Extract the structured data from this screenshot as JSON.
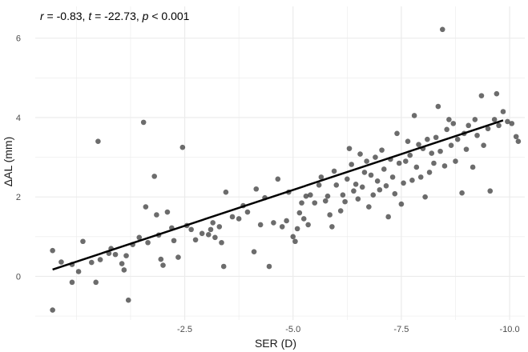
{
  "chart_data": {
    "type": "scatter",
    "annotation": {
      "r_symbol": "r",
      "r_value": " = -0.83, ",
      "t_symbol": "t",
      "t_value": " = -22.73, ",
      "p_symbol": "p",
      "p_value": " < 0.001"
    },
    "xlabel": "SER (D)",
    "ylabel": "ΔAL (mm)",
    "x_reversed": true,
    "xlim": [
      0.95,
      -10.35
    ],
    "ylim": [
      -1.1,
      6.8
    ],
    "x_ticks": [
      {
        "value": -2.5,
        "label": "-2.5"
      },
      {
        "value": -5.0,
        "label": "-5.0"
      },
      {
        "value": -7.5,
        "label": "-7.5"
      },
      {
        "value": -10.0,
        "label": "-10.0"
      }
    ],
    "y_ticks": [
      {
        "value": 0,
        "label": "0"
      },
      {
        "value": 2,
        "label": "2"
      },
      {
        "value": 4,
        "label": "4"
      },
      {
        "value": 6,
        "label": "6"
      }
    ],
    "grid": true,
    "regression": {
      "x": [
        0.55,
        -9.85
      ],
      "y": [
        0.17,
        3.93
      ]
    },
    "colors": {
      "point": "#333333",
      "line": "#000000",
      "grid": "#ebebeb"
    },
    "points": [
      [
        0.55,
        0.65
      ],
      [
        0.55,
        -0.85
      ],
      [
        0.35,
        0.36
      ],
      [
        0.1,
        -0.15
      ],
      [
        0.1,
        0.3
      ],
      [
        -0.05,
        0.12
      ],
      [
        -0.15,
        0.88
      ],
      [
        -0.35,
        0.35
      ],
      [
        -0.45,
        -0.15
      ],
      [
        -0.55,
        0.42
      ],
      [
        -0.5,
        3.4
      ],
      [
        -0.75,
        0.58
      ],
      [
        -0.8,
        0.7
      ],
      [
        -0.9,
        0.55
      ],
      [
        -1.05,
        0.32
      ],
      [
        -1.1,
        0.16
      ],
      [
        -1.15,
        0.52
      ],
      [
        -1.2,
        -0.6
      ],
      [
        -1.3,
        0.8
      ],
      [
        -1.45,
        0.98
      ],
      [
        -1.55,
        3.88
      ],
      [
        -1.6,
        1.75
      ],
      [
        -1.65,
        0.85
      ],
      [
        -1.8,
        2.52
      ],
      [
        -1.85,
        1.55
      ],
      [
        -1.9,
        1.04
      ],
      [
        -1.95,
        0.43
      ],
      [
        -2.0,
        0.28
      ],
      [
        -2.1,
        1.62
      ],
      [
        -2.2,
        1.22
      ],
      [
        -2.25,
        0.9
      ],
      [
        -2.35,
        0.48
      ],
      [
        -2.45,
        3.25
      ],
      [
        -2.55,
        1.28
      ],
      [
        -2.65,
        1.18
      ],
      [
        -2.75,
        0.92
      ],
      [
        -2.9,
        1.08
      ],
      [
        -3.05,
        1.05
      ],
      [
        -3.1,
        1.18
      ],
      [
        -3.15,
        1.35
      ],
      [
        -3.2,
        0.98
      ],
      [
        -3.3,
        1.25
      ],
      [
        -3.35,
        0.85
      ],
      [
        -3.4,
        0.25
      ],
      [
        -3.45,
        2.12
      ],
      [
        -3.6,
        1.5
      ],
      [
        -3.75,
        1.45
      ],
      [
        -3.85,
        1.78
      ],
      [
        -3.95,
        1.62
      ],
      [
        -4.1,
        0.62
      ],
      [
        -4.15,
        2.2
      ],
      [
        -4.25,
        1.3
      ],
      [
        -4.35,
        1.98
      ],
      [
        -4.45,
        0.25
      ],
      [
        -4.55,
        1.35
      ],
      [
        -4.65,
        2.45
      ],
      [
        -4.75,
        1.25
      ],
      [
        -4.85,
        1.4
      ],
      [
        -4.9,
        2.12
      ],
      [
        -5.0,
        1.0
      ],
      [
        -5.05,
        0.88
      ],
      [
        -5.1,
        1.2
      ],
      [
        -5.15,
        1.6
      ],
      [
        -5.2,
        1.85
      ],
      [
        -5.25,
        1.45
      ],
      [
        -5.3,
        2.02
      ],
      [
        -5.35,
        1.3
      ],
      [
        -5.4,
        2.05
      ],
      [
        -5.5,
        1.85
      ],
      [
        -5.6,
        2.3
      ],
      [
        -5.65,
        2.5
      ],
      [
        -5.75,
        1.9
      ],
      [
        -5.8,
        2.02
      ],
      [
        -5.85,
        1.55
      ],
      [
        -5.9,
        1.25
      ],
      [
        -5.95,
        2.65
      ],
      [
        -6.0,
        2.3
      ],
      [
        -6.1,
        1.65
      ],
      [
        -6.15,
        2.05
      ],
      [
        -6.2,
        1.88
      ],
      [
        -6.25,
        2.45
      ],
      [
        -6.3,
        3.22
      ],
      [
        -6.35,
        2.82
      ],
      [
        -6.4,
        2.15
      ],
      [
        -6.45,
        2.32
      ],
      [
        -6.5,
        1.95
      ],
      [
        -6.55,
        3.08
      ],
      [
        -6.6,
        2.25
      ],
      [
        -6.65,
        2.62
      ],
      [
        -6.7,
        2.9
      ],
      [
        -6.75,
        1.75
      ],
      [
        -6.8,
        2.55
      ],
      [
        -6.85,
        2.05
      ],
      [
        -6.9,
        3.0
      ],
      [
        -6.95,
        2.4
      ],
      [
        -7.0,
        2.18
      ],
      [
        -7.05,
        3.18
      ],
      [
        -7.1,
        2.7
      ],
      [
        -7.15,
        2.28
      ],
      [
        -7.2,
        1.5
      ],
      [
        -7.25,
        2.95
      ],
      [
        -7.3,
        2.5
      ],
      [
        -7.35,
        2.08
      ],
      [
        -7.4,
        3.6
      ],
      [
        -7.45,
        2.85
      ],
      [
        -7.5,
        1.82
      ],
      [
        -7.55,
        2.35
      ],
      [
        -7.6,
        2.9
      ],
      [
        -7.65,
        3.4
      ],
      [
        -7.7,
        3.05
      ],
      [
        -7.75,
        2.42
      ],
      [
        -7.8,
        4.05
      ],
      [
        -7.85,
        2.75
      ],
      [
        -7.9,
        3.32
      ],
      [
        -7.95,
        2.5
      ],
      [
        -8.0,
        3.22
      ],
      [
        -8.05,
        2.0
      ],
      [
        -8.1,
        3.45
      ],
      [
        -8.15,
        2.62
      ],
      [
        -8.2,
        3.1
      ],
      [
        -8.25,
        2.85
      ],
      [
        -8.3,
        3.5
      ],
      [
        -8.35,
        4.28
      ],
      [
        -8.4,
        3.15
      ],
      [
        -8.45,
        6.22
      ],
      [
        -8.5,
        2.78
      ],
      [
        -8.55,
        3.7
      ],
      [
        -8.6,
        3.95
      ],
      [
        -8.65,
        3.3
      ],
      [
        -8.7,
        3.85
      ],
      [
        -8.75,
        2.9
      ],
      [
        -8.8,
        3.45
      ],
      [
        -8.9,
        2.1
      ],
      [
        -8.95,
        3.6
      ],
      [
        -9.0,
        3.2
      ],
      [
        -9.05,
        3.8
      ],
      [
        -9.15,
        2.75
      ],
      [
        -9.2,
        3.95
      ],
      [
        -9.25,
        3.55
      ],
      [
        -9.35,
        4.55
      ],
      [
        -9.4,
        3.3
      ],
      [
        -9.5,
        3.72
      ],
      [
        -9.55,
        2.15
      ],
      [
        -9.65,
        3.95
      ],
      [
        -9.7,
        4.6
      ],
      [
        -9.75,
        3.8
      ],
      [
        -9.85,
        4.15
      ],
      [
        -9.95,
        3.9
      ],
      [
        -10.05,
        3.85
      ],
      [
        -10.15,
        3.52
      ],
      [
        -10.2,
        3.4
      ]
    ]
  }
}
